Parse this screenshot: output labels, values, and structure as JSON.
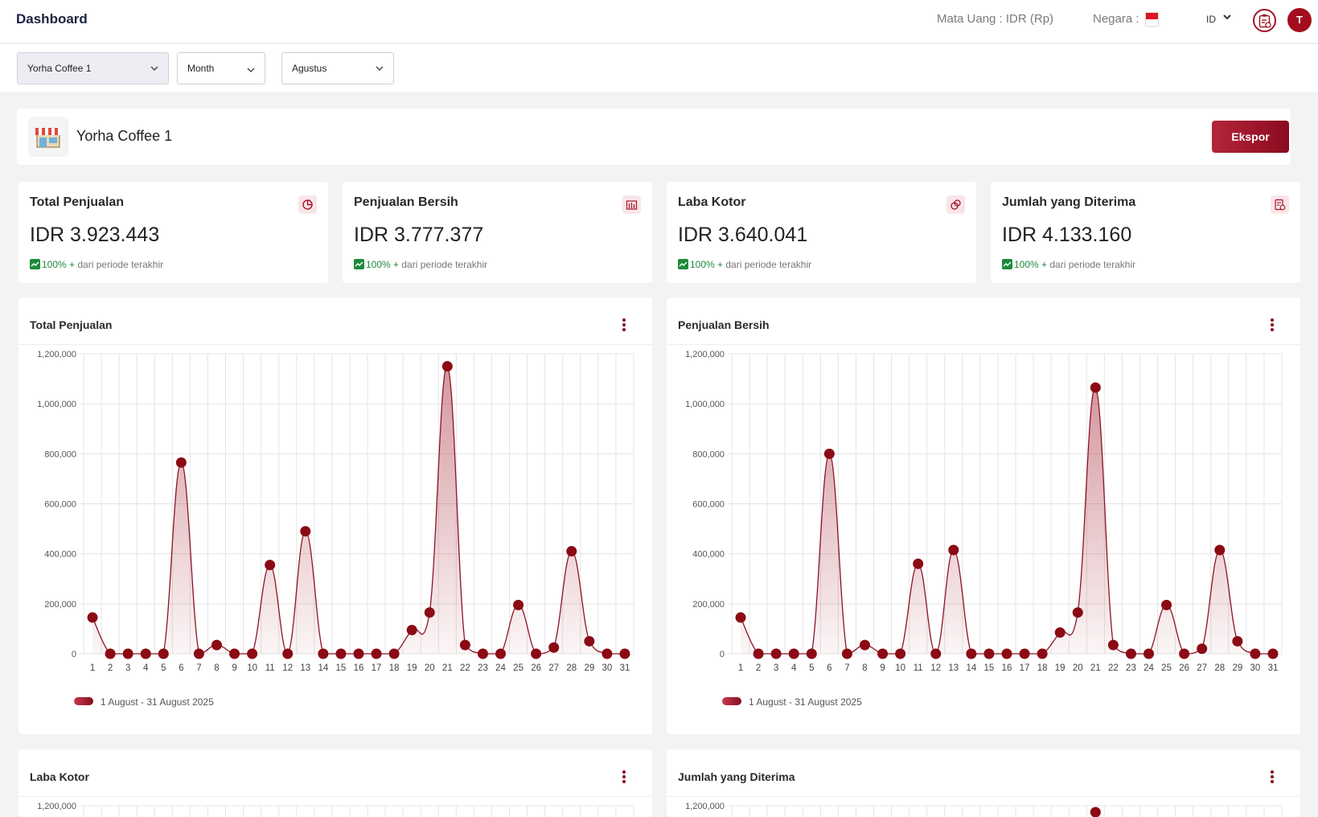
{
  "header": {
    "title": "Dashboard",
    "currency_label": "Mata Uang : IDR (Rp)",
    "country_label": "Negara :",
    "language": "ID",
    "avatar_initial": "T"
  },
  "filters": {
    "outlet": "Yorha Coffee 1",
    "period": "Month",
    "month": "Agustus"
  },
  "store": {
    "name": "Yorha Coffee 1",
    "export_label": "Ekspor"
  },
  "stats": [
    {
      "title": "Total Penjualan",
      "value": "IDR 3.923.443",
      "pct": "100% +",
      "suffix": " dari periode terakhir",
      "icon": "pie-chart-icon"
    },
    {
      "title": "Penjualan Bersih",
      "value": "IDR 3.777.377",
      "pct": "100% +",
      "suffix": " dari periode terakhir",
      "icon": "bar-chart-icon"
    },
    {
      "title": "Laba Kotor",
      "value": "IDR 3.640.041",
      "pct": "100% +",
      "suffix": " dari periode terakhir",
      "icon": "coins-icon"
    },
    {
      "title": "Jumlah yang Diterima",
      "value": "IDR 4.133.160",
      "pct": "100% +",
      "suffix": " dari periode terakhir",
      "icon": "receipt-icon"
    }
  ],
  "colors": {
    "accent": "#8b0a14",
    "positive": "#1f8a3c"
  },
  "chart_data": [
    {
      "type": "area",
      "title": "Total Penjualan",
      "categories": [
        "1",
        "2",
        "3",
        "4",
        "5",
        "6",
        "7",
        "8",
        "9",
        "10",
        "11",
        "12",
        "13",
        "14",
        "15",
        "16",
        "17",
        "18",
        "19",
        "20",
        "21",
        "22",
        "23",
        "24",
        "25",
        "26",
        "27",
        "28",
        "29",
        "30",
        "31"
      ],
      "ylim": [
        0,
        1200000
      ],
      "yticks": [
        "0",
        "200,000",
        "400,000",
        "600,000",
        "800,000",
        "1,000,000",
        "1,200,000"
      ],
      "series": [
        {
          "name": "1 August   -   31 August 2025",
          "values": [
            145000,
            0,
            0,
            0,
            0,
            765000,
            0,
            35000,
            0,
            0,
            355000,
            0,
            490000,
            0,
            0,
            0,
            0,
            0,
            95000,
            165000,
            1150000,
            35000,
            0,
            0,
            195000,
            0,
            25000,
            410000,
            50000,
            0,
            0
          ]
        }
      ],
      "legend": "bottom-left",
      "grid": true
    },
    {
      "type": "area",
      "title": "Penjualan Bersih",
      "categories": [
        "1",
        "2",
        "3",
        "4",
        "5",
        "6",
        "7",
        "8",
        "9",
        "10",
        "11",
        "12",
        "13",
        "14",
        "15",
        "16",
        "17",
        "18",
        "19",
        "20",
        "21",
        "22",
        "23",
        "24",
        "25",
        "26",
        "27",
        "28",
        "29",
        "30",
        "31"
      ],
      "ylim": [
        0,
        1200000
      ],
      "yticks": [
        "0",
        "200,000",
        "400,000",
        "600,000",
        "800,000",
        "1,000,000",
        "1,200,000"
      ],
      "series": [
        {
          "name": "1 August   -   31 August 2025",
          "values": [
            145000,
            0,
            0,
            0,
            0,
            800000,
            0,
            35000,
            0,
            0,
            360000,
            0,
            415000,
            0,
            0,
            0,
            0,
            0,
            85000,
            165000,
            1065000,
            35000,
            0,
            0,
            195000,
            0,
            20000,
            415000,
            50000,
            0,
            0
          ]
        }
      ],
      "legend": "bottom-left",
      "grid": true
    },
    {
      "type": "area",
      "title": "Laba Kotor",
      "ylim": [
        0,
        1200000
      ],
      "yticks": [
        "1,200,000"
      ],
      "grid": true
    },
    {
      "type": "area",
      "title": "Jumlah yang Diterima",
      "ylim": [
        0,
        1200000
      ],
      "yticks": [
        "1,200,000"
      ],
      "grid": true
    }
  ]
}
